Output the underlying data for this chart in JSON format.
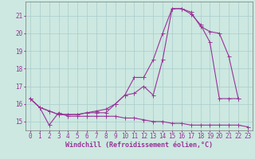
{
  "background_color": "#cce8e0",
  "grid_color": "#aacccc",
  "line_color": "#993399",
  "xlabel": "Windchill (Refroidissement éolien,°C)",
  "xlabel_fontsize": 6.0,
  "tick_fontsize": 5.5,
  "xlim": [
    -0.5,
    23.5
  ],
  "ylim": [
    14.5,
    21.8
  ],
  "yticks": [
    15,
    16,
    17,
    18,
    19,
    20,
    21
  ],
  "xticks": [
    0,
    1,
    2,
    3,
    4,
    5,
    6,
    7,
    8,
    9,
    10,
    11,
    12,
    13,
    14,
    15,
    16,
    17,
    18,
    19,
    20,
    21,
    22,
    23
  ],
  "curve1_x": [
    0,
    1,
    2,
    3,
    4,
    5,
    6,
    7,
    8,
    9,
    10,
    11,
    12,
    13,
    14,
    15,
    16,
    17,
    18,
    19,
    20,
    21,
    22,
    23
  ],
  "curve1_y": [
    16.3,
    15.8,
    14.8,
    15.5,
    15.3,
    15.3,
    15.3,
    15.3,
    15.3,
    15.3,
    15.2,
    15.2,
    15.1,
    15.0,
    15.0,
    14.9,
    14.9,
    14.8,
    14.8,
    14.8,
    14.8,
    14.8,
    14.8,
    14.7
  ],
  "curve2_x": [
    0,
    1,
    2,
    3,
    4,
    5,
    6,
    7,
    8,
    9,
    10,
    11,
    12,
    13,
    14,
    15,
    16,
    17,
    18,
    19,
    20,
    21,
    22
  ],
  "curve2_y": [
    16.3,
    15.8,
    15.6,
    15.4,
    15.4,
    15.4,
    15.5,
    15.6,
    15.7,
    16.0,
    16.5,
    16.6,
    17.0,
    16.5,
    18.5,
    21.4,
    21.4,
    21.2,
    20.4,
    20.1,
    20.0,
    18.7,
    16.3
  ],
  "curve3_x": [
    0,
    1,
    2,
    3,
    4,
    5,
    6,
    7,
    8,
    9,
    10,
    11,
    12,
    13,
    14,
    15,
    16,
    17,
    18,
    19,
    20,
    21,
    22
  ],
  "curve3_y": [
    16.3,
    15.8,
    15.6,
    15.4,
    15.4,
    15.4,
    15.5,
    15.5,
    15.5,
    16.0,
    16.5,
    17.5,
    17.5,
    18.5,
    20.0,
    21.4,
    21.4,
    21.1,
    20.5,
    19.5,
    16.3,
    16.3,
    16.3
  ]
}
